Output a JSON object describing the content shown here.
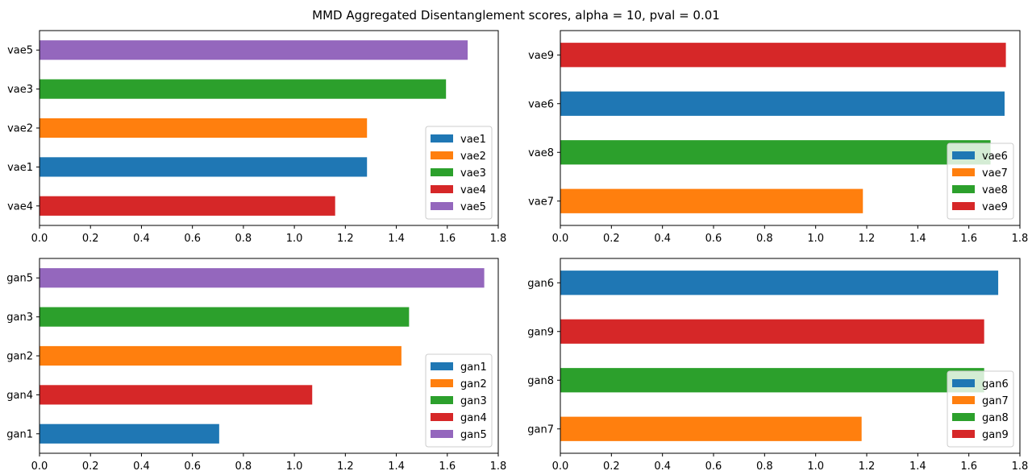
{
  "figure": {
    "title": "MMD Aggregated Disentanglement scores, alpha = 10, pval = 0.01"
  },
  "colors": {
    "vae1": "#1f77b4",
    "vae2": "#ff7f0e",
    "vae3": "#2ca02c",
    "vae4": "#d62728",
    "vae5": "#9467bd",
    "vae6": "#1f77b4",
    "vae7": "#ff7f0e",
    "vae8": "#2ca02c",
    "vae9": "#d62728",
    "gan1": "#1f77b4",
    "gan2": "#ff7f0e",
    "gan3": "#2ca02c",
    "gan4": "#d62728",
    "gan5": "#9467bd",
    "gan6": "#1f77b4",
    "gan7": "#ff7f0e",
    "gan8": "#2ca02c",
    "gan9": "#d62728"
  },
  "chart_data": [
    {
      "type": "bar",
      "orientation": "horizontal",
      "categories": [
        "vae4",
        "vae1",
        "vae2",
        "vae3",
        "vae5"
      ],
      "values": [
        1.16,
        1.285,
        1.285,
        1.595,
        1.68
      ],
      "xlim": [
        0,
        1.8
      ],
      "xticks": [
        "0.0",
        "0.2",
        "0.4",
        "0.6",
        "0.8",
        "1.0",
        "1.2",
        "1.4",
        "1.6",
        "1.8"
      ],
      "legend": [
        "vae1",
        "vae2",
        "vae3",
        "vae4",
        "vae5"
      ],
      "legend_position": "lower-right",
      "grid": false
    },
    {
      "type": "bar",
      "orientation": "horizontal",
      "categories": [
        "vae7",
        "vae8",
        "vae6",
        "vae9"
      ],
      "values": [
        1.185,
        1.685,
        1.74,
        1.745
      ],
      "xlim": [
        0,
        1.8
      ],
      "xticks": [
        "0.0",
        "0.2",
        "0.4",
        "0.6",
        "0.8",
        "1.0",
        "1.2",
        "1.4",
        "1.6",
        "1.8"
      ],
      "legend": [
        "vae6",
        "vae7",
        "vae8",
        "vae9"
      ],
      "legend_position": "lower-right",
      "grid": false
    },
    {
      "type": "bar",
      "orientation": "horizontal",
      "categories": [
        "gan1",
        "gan4",
        "gan2",
        "gan3",
        "gan5"
      ],
      "values": [
        0.705,
        1.07,
        1.42,
        1.45,
        1.745
      ],
      "xlim": [
        0,
        1.8
      ],
      "xticks": [
        "0.0",
        "0.2",
        "0.4",
        "0.6",
        "0.8",
        "1.0",
        "1.2",
        "1.4",
        "1.6",
        "1.8"
      ],
      "legend": [
        "gan1",
        "gan2",
        "gan3",
        "gan4",
        "gan5"
      ],
      "legend_position": "lower-right",
      "grid": false
    },
    {
      "type": "bar",
      "orientation": "horizontal",
      "categories": [
        "gan7",
        "gan8",
        "gan9",
        "gan6"
      ],
      "values": [
        1.18,
        1.66,
        1.66,
        1.715
      ],
      "xlim": [
        0,
        1.8
      ],
      "xticks": [
        "0.0",
        "0.2",
        "0.4",
        "0.6",
        "0.8",
        "1.0",
        "1.2",
        "1.4",
        "1.6",
        "1.8"
      ],
      "legend": [
        "gan6",
        "gan7",
        "gan8",
        "gan9"
      ],
      "legend_position": "lower-right",
      "grid": false
    }
  ]
}
